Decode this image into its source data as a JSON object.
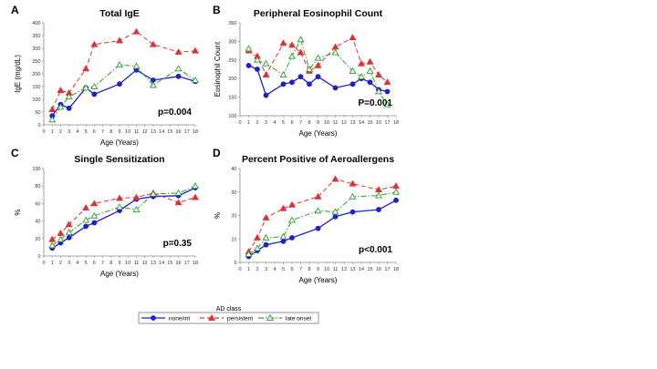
{
  "legend": {
    "title": "AD class",
    "items": [
      {
        "label": "none/int",
        "color": "#1f1fd0",
        "marker": "circle",
        "dash": "solid"
      },
      {
        "label": "persistent",
        "color": "#e03030",
        "marker": "triangle-filled",
        "dash": "dashed"
      },
      {
        "label": "late onset",
        "color": "#2e9e2e",
        "marker": "triangle-open",
        "dash": "dashdot"
      }
    ]
  },
  "chart_data": [
    {
      "letter": "A",
      "type": "line",
      "title": "Total IgE",
      "xlabel": "Age (Years)",
      "ylabel": "IgE (mg/dL)",
      "pvalue": "p=0.004",
      "xticks": [
        0,
        1,
        2,
        3,
        4,
        5,
        6,
        7,
        8,
        9,
        10,
        11,
        12,
        13,
        14,
        15,
        16,
        17,
        18
      ],
      "ylim": [
        0,
        400
      ],
      "yticks": [
        0,
        50,
        100,
        150,
        200,
        250,
        300,
        350,
        400
      ],
      "x": [
        1,
        2,
        3,
        5,
        6,
        9,
        11,
        13,
        16,
        18
      ],
      "series": [
        {
          "name": "none/int",
          "values": [
            35,
            80,
            65,
            145,
            120,
            160,
            215,
            175,
            190,
            170
          ]
        },
        {
          "name": "persistent",
          "values": [
            60,
            135,
            125,
            220,
            315,
            330,
            365,
            315,
            285,
            290
          ]
        },
        {
          "name": "late onset",
          "values": [
            20,
            70,
            110,
            145,
            150,
            235,
            230,
            155,
            220,
            175
          ]
        }
      ]
    },
    {
      "letter": "B",
      "type": "line",
      "title": "Peripheral Eosinophil Count",
      "xlabel": "Age (Years)",
      "ylabel": "Eosinophil Count",
      "pvalue": "P=0.001",
      "xticks": [
        0,
        1,
        2,
        3,
        4,
        5,
        6,
        7,
        8,
        9,
        10,
        11,
        12,
        13,
        14,
        15,
        16,
        17,
        18
      ],
      "ylim": [
        100,
        350
      ],
      "yticks": [
        100,
        150,
        200,
        250,
        300,
        350
      ],
      "x": [
        1,
        2,
        3,
        5,
        6,
        7,
        8,
        9,
        11,
        13,
        14,
        15,
        16,
        17
      ],
      "series": [
        {
          "name": "none/int",
          "values": [
            235,
            225,
            155,
            185,
            190,
            205,
            185,
            205,
            175,
            185,
            200,
            190,
            170,
            165
          ]
        },
        {
          "name": "persistent",
          "values": [
            275,
            260,
            210,
            295,
            290,
            270,
            220,
            235,
            285,
            310,
            240,
            245,
            210,
            190
          ]
        },
        {
          "name": "late onset",
          "values": [
            280,
            250,
            240,
            210,
            260,
            305,
            225,
            255,
            270,
            220,
            205,
            220,
            165,
            130
          ]
        }
      ]
    },
    {
      "letter": "C",
      "type": "line",
      "title": "Single Sensitization",
      "xlabel": "Age (Years)",
      "ylabel": "%",
      "pvalue": "p=0.35",
      "xticks": [
        0,
        1,
        2,
        3,
        4,
        5,
        6,
        7,
        8,
        9,
        10,
        11,
        12,
        13,
        14,
        15,
        16,
        17,
        18
      ],
      "ylim": [
        0,
        100
      ],
      "yticks": [
        0,
        20,
        40,
        60,
        80,
        100
      ],
      "x": [
        1,
        2,
        3,
        5,
        6,
        9,
        11,
        13,
        16,
        18
      ],
      "series": [
        {
          "name": "none/int",
          "values": [
            9,
            15,
            21,
            34,
            38,
            52,
            65,
            68,
            69,
            78
          ]
        },
        {
          "name": "persistent",
          "values": [
            19,
            26,
            36,
            55,
            60,
            66,
            67,
            72,
            61,
            67
          ]
        },
        {
          "name": "late onset",
          "values": [
            12,
            19,
            27,
            41,
            46,
            56,
            53,
            71,
            72,
            80
          ]
        }
      ]
    },
    {
      "letter": "D",
      "type": "line",
      "title": "Percent Positive of Aeroallergens",
      "xlabel": "Age (Years)",
      "ylabel": "%",
      "pvalue": "p<0.001",
      "xticks": [
        0,
        1,
        2,
        3,
        4,
        5,
        6,
        7,
        8,
        9,
        10,
        11,
        12,
        13,
        14,
        15,
        16,
        17,
        18
      ],
      "ylim": [
        0,
        40
      ],
      "yticks": [
        0,
        10,
        20,
        30,
        40
      ],
      "x": [
        1,
        2,
        3,
        5,
        6,
        9,
        11,
        13,
        16,
        18
      ],
      "series": [
        {
          "name": "none/int",
          "values": [
            2.5,
            5,
            7.5,
            9,
            10.5,
            14.5,
            19.5,
            21.5,
            22.5,
            26.5
          ]
        },
        {
          "name": "persistent",
          "values": [
            4.5,
            10.5,
            19,
            23,
            24.5,
            28,
            35.5,
            33.5,
            31,
            32.5
          ]
        },
        {
          "name": "late onset",
          "values": [
            3.5,
            6,
            10.5,
            11,
            18,
            22,
            21.5,
            28,
            28.5,
            30
          ]
        }
      ]
    }
  ]
}
